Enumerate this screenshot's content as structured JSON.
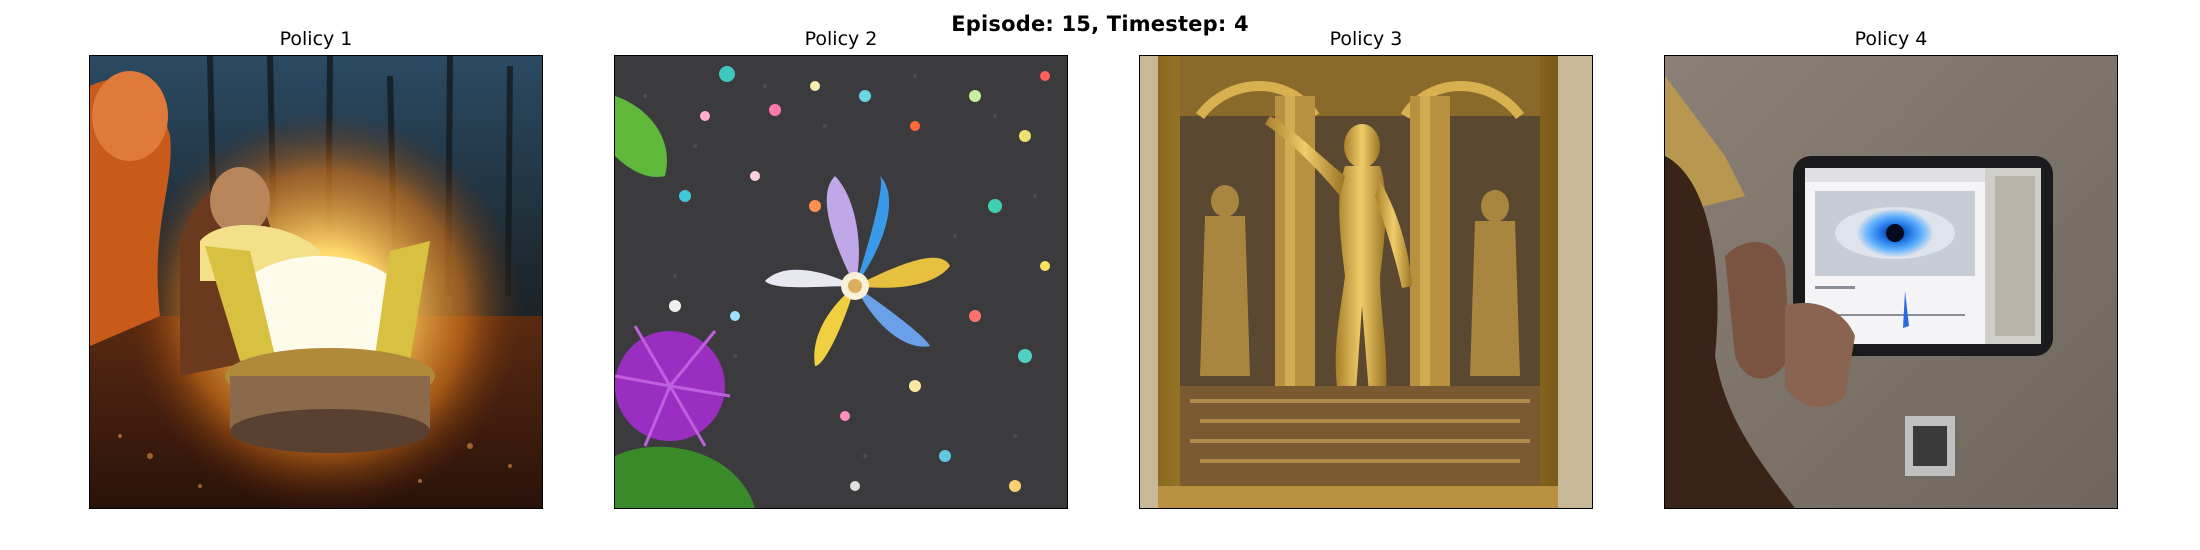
{
  "figure": {
    "title": "Episode: 15, Timestep: 4"
  },
  "panels": [
    {
      "title": "Policy 1",
      "content": "night-campfire-lamp-image"
    },
    {
      "title": "Policy 2",
      "content": "starflower-on-speckled-ground-image"
    },
    {
      "title": "Policy 3",
      "content": "golden-statue-in-frame-image"
    },
    {
      "title": "Policy 4",
      "content": "hand-holding-tablet-eye-image"
    }
  ]
}
